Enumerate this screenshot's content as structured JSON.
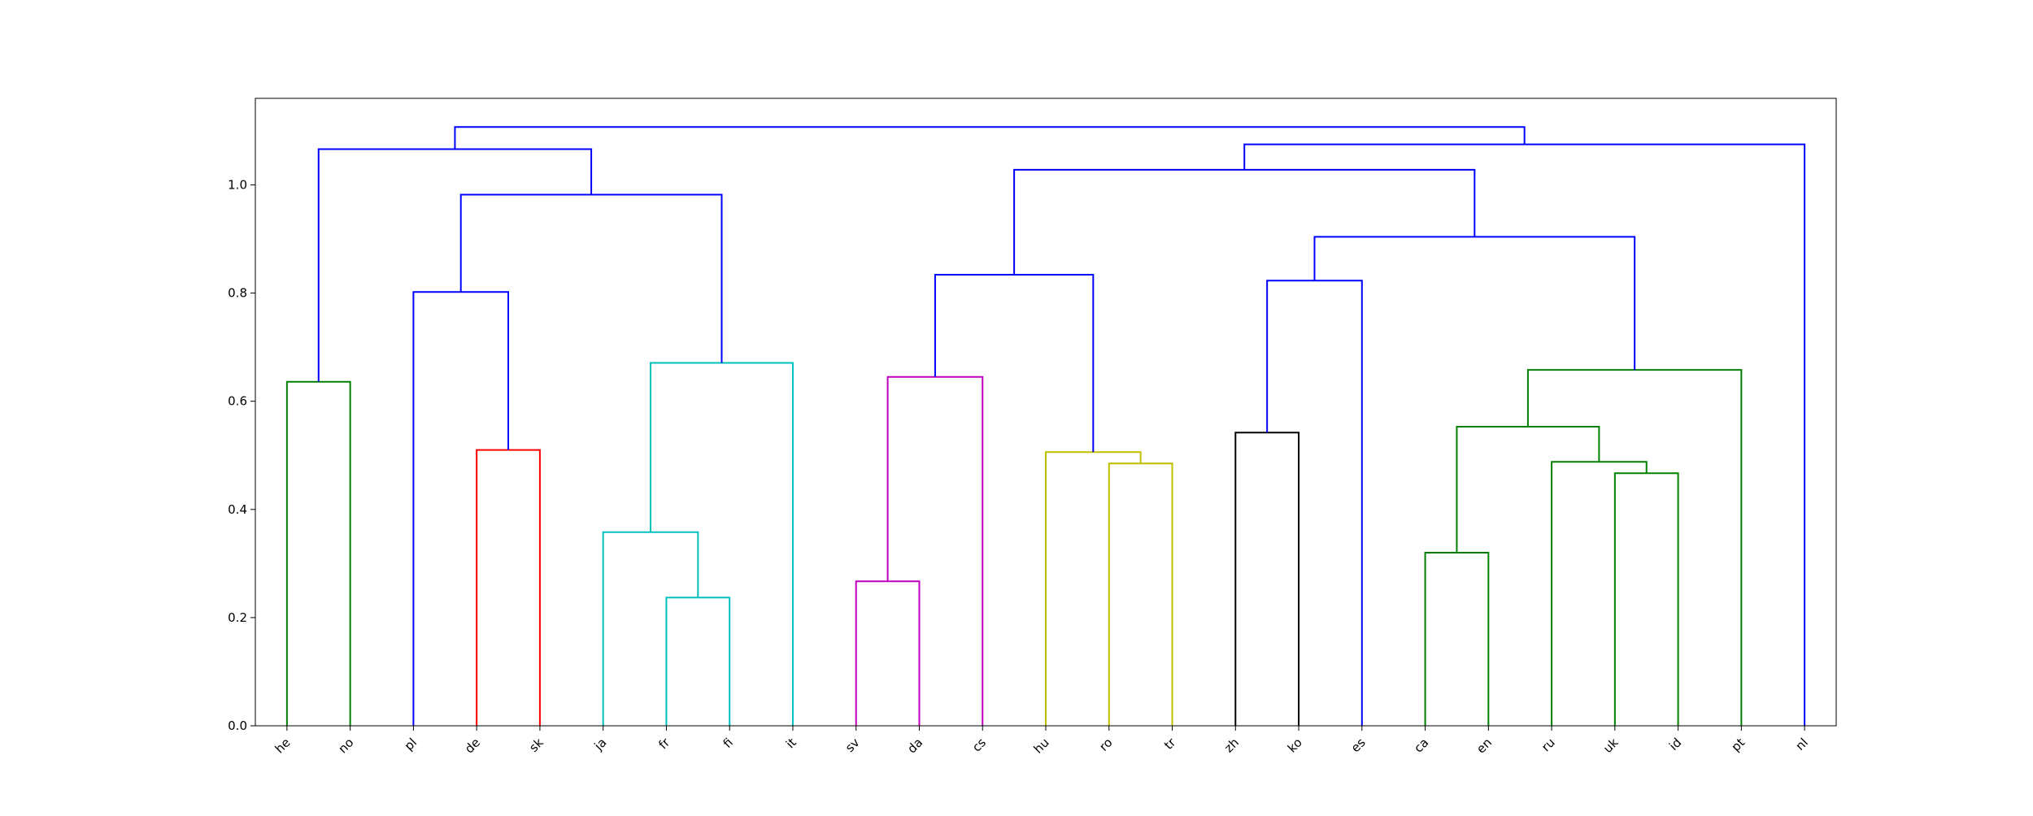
{
  "chart_data": {
    "type": "dendrogram",
    "title": "",
    "xlabel": "",
    "ylabel": "",
    "ylim": [
      0,
      1.16
    ],
    "yticks": [
      0.0,
      0.2,
      0.4,
      0.6,
      0.8,
      1.0
    ],
    "ytick_labels": [
      "0.0",
      "0.2",
      "0.4",
      "0.6",
      "0.8",
      "1.0"
    ],
    "grid": false,
    "leaves": [
      "he",
      "no",
      "pl",
      "de",
      "sk",
      "ja",
      "fr",
      "fi",
      "it",
      "sv",
      "da",
      "cs",
      "hu",
      "ro",
      "tr",
      "zh",
      "ko",
      "es",
      "ca",
      "en",
      "ru",
      "uk",
      "id",
      "pt",
      "nl"
    ],
    "links": [
      {
        "left": "fr",
        "right": "fi",
        "height": 0.237,
        "color": "#00bfbf"
      },
      {
        "left": "ca",
        "right": "en",
        "height": 0.32,
        "color": "#008000"
      },
      {
        "left": "sv",
        "right": "da",
        "height": 0.267,
        "color": "#bf00bf"
      },
      {
        "left": "ja",
        "right": "fr+fi",
        "height": 0.358,
        "color": "#00bfbf"
      },
      {
        "left": "uk",
        "right": "id",
        "height": 0.467,
        "color": "#008000"
      },
      {
        "left": "ro",
        "right": "tr",
        "height": 0.485,
        "color": "#bfbf00"
      },
      {
        "left": "ru",
        "right": "uk+id",
        "height": 0.488,
        "color": "#008000"
      },
      {
        "left": "hu",
        "right": "ro+tr",
        "height": 0.506,
        "color": "#bfbf00"
      },
      {
        "left": "de",
        "right": "sk",
        "height": 0.51,
        "color": "#ff0000"
      },
      {
        "left": "zh",
        "right": "ko",
        "height": 0.542,
        "color": "#000000"
      },
      {
        "left": "ca+en",
        "right": "ru+uk+id",
        "height": 0.553,
        "color": "#008000"
      },
      {
        "left": "he",
        "right": "no",
        "height": 0.636,
        "color": "#008000"
      },
      {
        "left": "sv+da",
        "right": "cs",
        "height": 0.645,
        "color": "#bf00bf"
      },
      {
        "left": "ca+en+ru+uk+id",
        "right": "pt",
        "height": 0.658,
        "color": "#008000"
      },
      {
        "left": "ja+fr+fi",
        "right": "it",
        "height": 0.671,
        "color": "#00bfbf"
      },
      {
        "left": "pl",
        "right": "de+sk",
        "height": 0.802,
        "color": "#0000ff"
      },
      {
        "left": "zh+ko",
        "right": "es",
        "height": 0.823,
        "color": "#0000ff"
      },
      {
        "left": "sv+da+cs",
        "right": "hu+ro+tr",
        "height": 0.834,
        "color": "#0000ff"
      },
      {
        "left": "zh+ko+es",
        "right": "ca+en+ru+uk+id+pt",
        "height": 0.904,
        "color": "#0000ff"
      },
      {
        "left": "pl+de+sk",
        "right": "ja+fr+fi+it",
        "height": 0.982,
        "color": "#0000ff"
      },
      {
        "left": "sv+da+cs+hu+ro+tr",
        "right": "zh+ko+es+ca+en+ru+uk+id+pt",
        "height": 1.028,
        "color": "#0000ff"
      },
      {
        "left": "he+no",
        "right": "pl+de+sk+ja+fr+fi+it",
        "height": 1.066,
        "color": "#0000ff"
      },
      {
        "left": "sv+da+cs+hu+ro+tr+zh+ko+es+ca+en+ru+uk+id+pt",
        "right": "nl",
        "height": 1.075,
        "color": "#0000ff"
      },
      {
        "left": "he+no+pl+de+sk+ja+fr+fi+it",
        "right": "sv+da+cs+hu+ro+tr+zh+ko+es+ca+en+ru+uk+id+pt+nl",
        "height": 1.107,
        "color": "#0000ff"
      }
    ]
  }
}
